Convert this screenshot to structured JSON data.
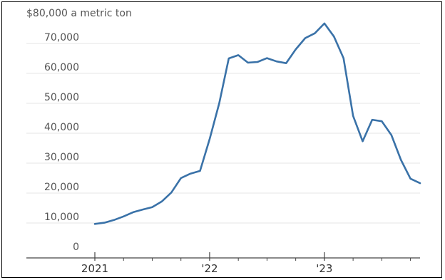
{
  "chart_data": {
    "type": "line",
    "title": "",
    "xlabel": "",
    "ylabel": "",
    "y_top_label": "$80,000 a metric ton",
    "ylim": [
      0,
      80000
    ],
    "y_ticks": [
      {
        "value": 0,
        "label": "0"
      },
      {
        "value": 10000,
        "label": "10,000"
      },
      {
        "value": 20000,
        "label": "20,000"
      },
      {
        "value": 30000,
        "label": "30,000"
      },
      {
        "value": 40000,
        "label": "40,000"
      },
      {
        "value": 50000,
        "label": "50,000"
      },
      {
        "value": 60000,
        "label": "60,000"
      },
      {
        "value": 70000,
        "label": "70,000"
      }
    ],
    "x_ticks": [
      {
        "value": "2021-01",
        "label": "2021"
      },
      {
        "value": "2022-01",
        "label": "'22"
      },
      {
        "value": "2023-01",
        "label": "'23"
      }
    ],
    "xlim": [
      "2021-01",
      "2023-11"
    ],
    "grid": true,
    "colors": {
      "line": "#3a72a8",
      "grid": "#e4e4e4",
      "axis": "#444444"
    },
    "series": [
      {
        "values": [
          {
            "x": "2021-01",
            "y": 9700
          },
          {
            "x": "2021-02",
            "y": 10100
          },
          {
            "x": "2021-03",
            "y": 11000
          },
          {
            "x": "2021-04",
            "y": 12200
          },
          {
            "x": "2021-05",
            "y": 13600
          },
          {
            "x": "2021-06",
            "y": 14500
          },
          {
            "x": "2021-07",
            "y": 15300
          },
          {
            "x": "2021-08",
            "y": 17200
          },
          {
            "x": "2021-09",
            "y": 20200
          },
          {
            "x": "2021-10",
            "y": 25000
          },
          {
            "x": "2021-11",
            "y": 26500
          },
          {
            "x": "2021-12",
            "y": 27400
          },
          {
            "x": "2022-01",
            "y": 38000
          },
          {
            "x": "2022-02",
            "y": 50000
          },
          {
            "x": "2022-03",
            "y": 65000
          },
          {
            "x": "2022-04",
            "y": 66100
          },
          {
            "x": "2022-05",
            "y": 63600
          },
          {
            "x": "2022-06",
            "y": 63800
          },
          {
            "x": "2022-07",
            "y": 65100
          },
          {
            "x": "2022-08",
            "y": 64000
          },
          {
            "x": "2022-09",
            "y": 63400
          },
          {
            "x": "2022-10",
            "y": 68000
          },
          {
            "x": "2022-11",
            "y": 71800
          },
          {
            "x": "2022-12",
            "y": 73400
          },
          {
            "x": "2023-01",
            "y": 76700
          },
          {
            "x": "2023-02",
            "y": 72300
          },
          {
            "x": "2023-03",
            "y": 65100
          },
          {
            "x": "2023-04",
            "y": 45800
          },
          {
            "x": "2023-05",
            "y": 37300
          },
          {
            "x": "2023-06",
            "y": 44500
          },
          {
            "x": "2023-07",
            "y": 44000
          },
          {
            "x": "2023-08",
            "y": 39400
          },
          {
            "x": "2023-09",
            "y": 31100
          },
          {
            "x": "2023-10",
            "y": 24800
          },
          {
            "x": "2023-11",
            "y": 23300
          }
        ]
      }
    ]
  }
}
